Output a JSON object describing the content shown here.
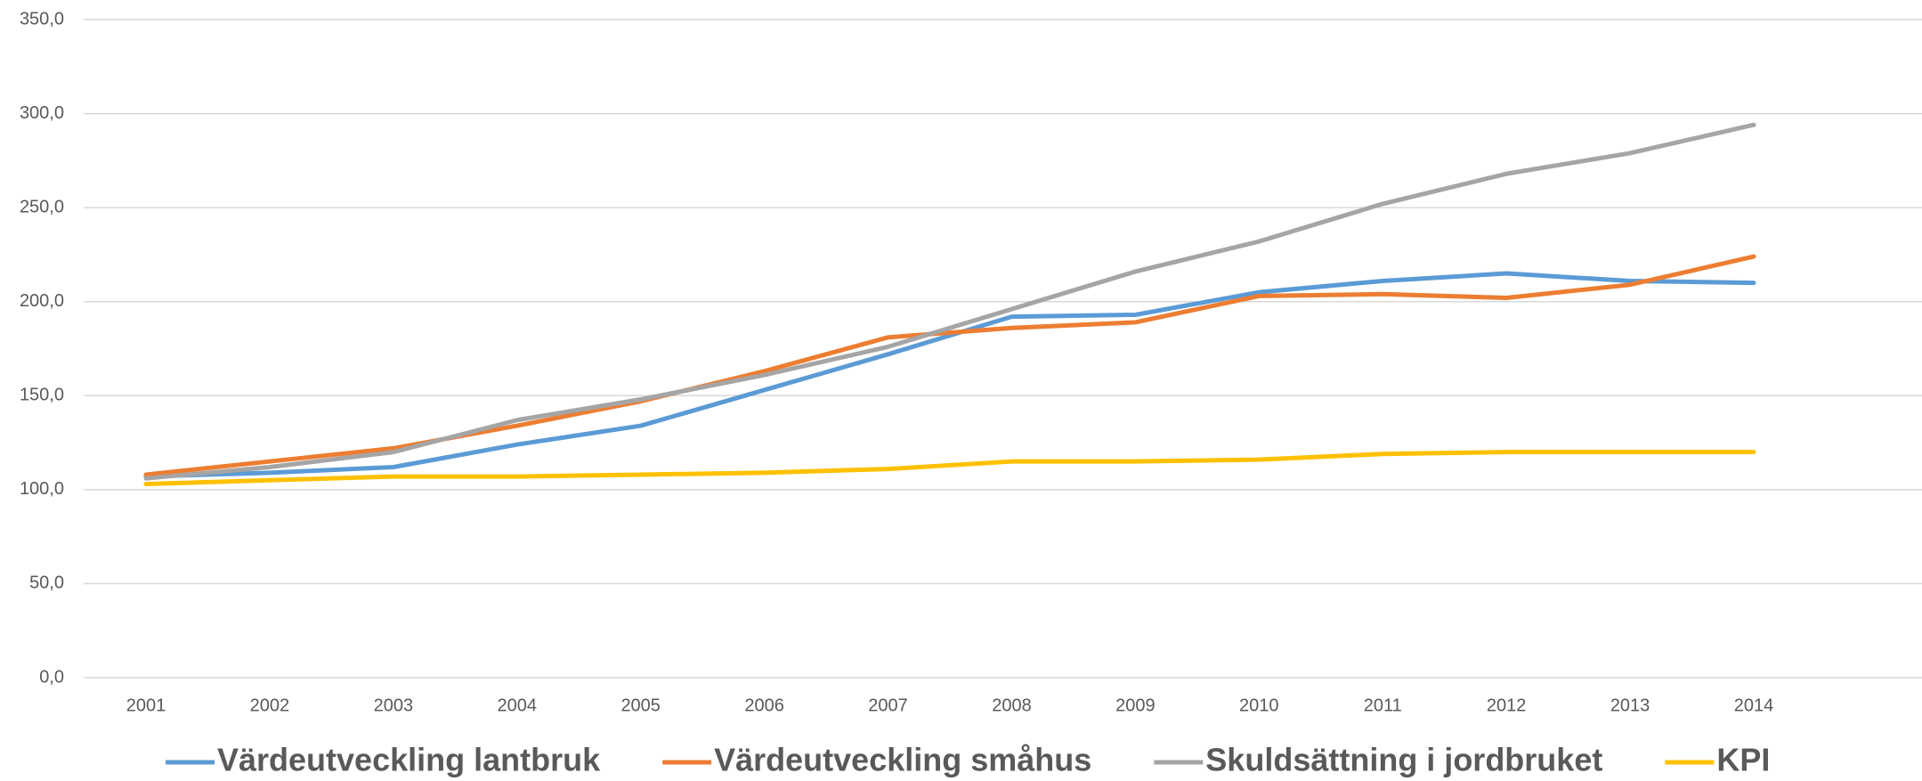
{
  "chart_data": {
    "type": "line",
    "categories": [
      "2001",
      "2002",
      "2003",
      "2004",
      "2005",
      "2006",
      "2007",
      "2008",
      "2009",
      "2010",
      "2011",
      "2012",
      "2013",
      "2014"
    ],
    "series": [
      {
        "name": "Värdeutveckling lantbruk",
        "color": "#5b9bd5",
        "values": [
          107,
          109,
          112,
          124,
          134,
          153,
          172,
          192,
          193,
          205,
          211,
          215,
          211,
          210
        ]
      },
      {
        "name": "Värdeutveckling småhus",
        "color": "#ed7d31",
        "values": [
          108,
          115,
          122,
          134,
          147,
          163,
          181,
          186,
          189,
          203,
          204,
          202,
          209,
          224
        ]
      },
      {
        "name": "Skuldsättning i jordbruket",
        "color": "#a5a5a5",
        "values": [
          106,
          112,
          120,
          137,
          148,
          161,
          176,
          196,
          216,
          232,
          252,
          268,
          279,
          294
        ]
      },
      {
        "name": "KPI",
        "color": "#ffc000",
        "values": [
          103,
          105,
          107,
          107,
          108,
          109,
          111,
          115,
          115,
          116,
          119,
          120,
          120,
          120
        ]
      }
    ],
    "ylim": [
      0,
      350
    ],
    "yticks": [
      {
        "value": 0,
        "label": "0,0"
      },
      {
        "value": 50,
        "label": "50,0"
      },
      {
        "value": 100,
        "label": "100,0"
      },
      {
        "value": 150,
        "label": "150,0"
      },
      {
        "value": 200,
        "label": "200,0"
      },
      {
        "value": 250,
        "label": "250,0"
      },
      {
        "value": 300,
        "label": "300,0"
      },
      {
        "value": 350,
        "label": "350,0"
      }
    ],
    "grid": true,
    "legend": "bottom"
  }
}
